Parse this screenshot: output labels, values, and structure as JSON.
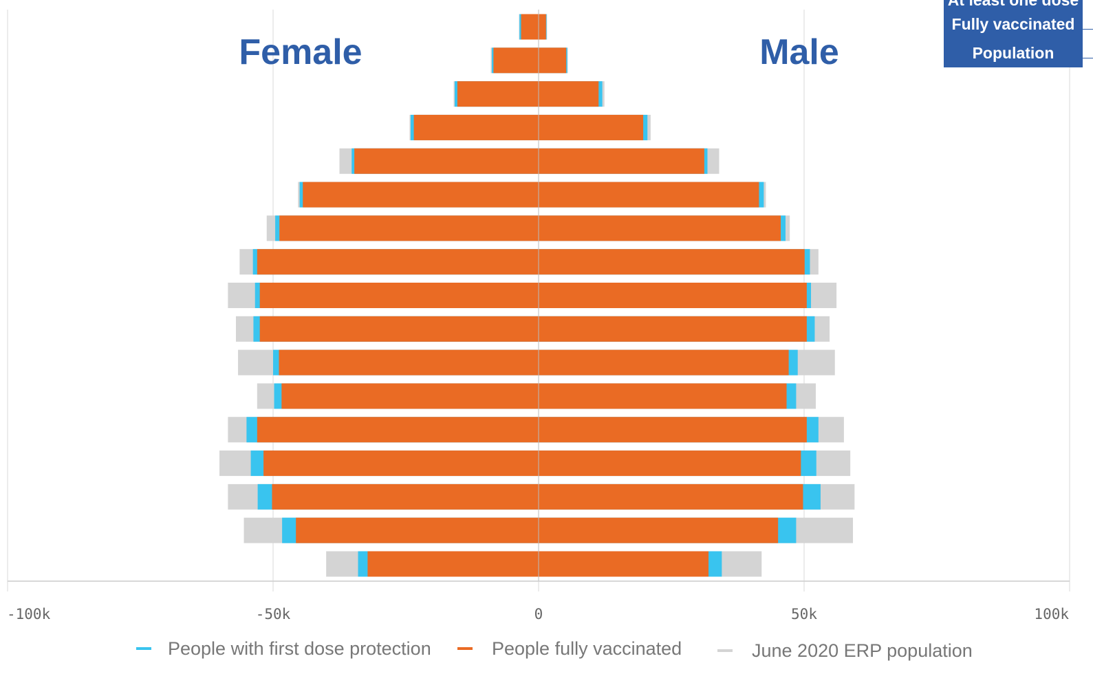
{
  "chart_data": {
    "type": "bar",
    "orientation": "horizontal",
    "layout": "population-pyramid",
    "xlim": [
      -100000,
      100000
    ],
    "x_ticks": [
      {
        "value": -100000,
        "label": "-100k"
      },
      {
        "value": -50000,
        "label": "-50k"
      },
      {
        "value": 0,
        "label": "0"
      },
      {
        "value": 50000,
        "label": "50k"
      },
      {
        "value": 100000,
        "label": "100k"
      }
    ],
    "side_labels": {
      "left": "Female",
      "right": "Male"
    },
    "legend": [
      {
        "key": "first_dose",
        "label": "People with first dose protection",
        "color": "#39c4ef"
      },
      {
        "key": "fully",
        "label": "People fully vaccinated",
        "color": "#ea6b24"
      },
      {
        "key": "population",
        "label": "June 2020 ERP population",
        "color": "#d4d4d4"
      }
    ],
    "overlay_legend": [
      "At least one dose",
      "Fully vaccinated",
      "Population"
    ],
    "rows": [
      {
        "female": {
          "population": 3700,
          "first_dose": 3600,
          "fully": 3300
        },
        "male": {
          "population": 1600,
          "first_dose": 1500,
          "fully": 1400
        }
      },
      {
        "female": {
          "population": 9000,
          "first_dose": 8800,
          "fully": 8500
        },
        "male": {
          "population": 5500,
          "first_dose": 5400,
          "fully": 5200
        }
      },
      {
        "female": {
          "population": 16000,
          "first_dose": 15800,
          "fully": 15300
        },
        "male": {
          "population": 12400,
          "first_dose": 12000,
          "fully": 11300
        }
      },
      {
        "female": {
          "population": 24300,
          "first_dose": 24100,
          "fully": 23500
        },
        "male": {
          "population": 21100,
          "first_dose": 20500,
          "fully": 19700
        }
      },
      {
        "female": {
          "population": 37500,
          "first_dose": 35200,
          "fully": 34700
        },
        "male": {
          "population": 34000,
          "first_dose": 31800,
          "fully": 31200
        }
      },
      {
        "female": {
          "population": 45300,
          "first_dose": 45000,
          "fully": 44400
        },
        "male": {
          "population": 42800,
          "first_dose": 42400,
          "fully": 41500
        }
      },
      {
        "female": {
          "population": 51200,
          "first_dose": 49600,
          "fully": 48800
        },
        "male": {
          "population": 47300,
          "first_dose": 46500,
          "fully": 45600
        }
      },
      {
        "female": {
          "population": 56300,
          "first_dose": 53800,
          "fully": 53000
        },
        "male": {
          "population": 52700,
          "first_dose": 51100,
          "fully": 50100
        }
      },
      {
        "female": {
          "population": 58500,
          "first_dose": 53400,
          "fully": 52500
        },
        "male": {
          "population": 56100,
          "first_dose": 51300,
          "fully": 50500
        }
      },
      {
        "female": {
          "population": 57000,
          "first_dose": 53700,
          "fully": 52500
        },
        "male": {
          "population": 54800,
          "first_dose": 52000,
          "fully": 50500
        }
      },
      {
        "female": {
          "population": 56600,
          "first_dose": 50000,
          "fully": 48900
        },
        "male": {
          "population": 55800,
          "first_dose": 48800,
          "fully": 47100
        }
      },
      {
        "female": {
          "population": 53000,
          "first_dose": 49800,
          "fully": 48400
        },
        "male": {
          "population": 52200,
          "first_dose": 48500,
          "fully": 46700
        }
      },
      {
        "female": {
          "population": 58500,
          "first_dose": 55000,
          "fully": 53000
        },
        "male": {
          "population": 57500,
          "first_dose": 52700,
          "fully": 50500
        }
      },
      {
        "female": {
          "population": 60100,
          "first_dose": 54200,
          "fully": 51800
        },
        "male": {
          "population": 58700,
          "first_dose": 52300,
          "fully": 49400
        }
      },
      {
        "female": {
          "population": 58500,
          "first_dose": 52900,
          "fully": 50200
        },
        "male": {
          "population": 59500,
          "first_dose": 53100,
          "fully": 49800
        }
      },
      {
        "female": {
          "population": 55500,
          "first_dose": 48300,
          "fully": 45700
        },
        "male": {
          "population": 59200,
          "first_dose": 48500,
          "fully": 45100
        }
      },
      {
        "female": {
          "population": 40000,
          "first_dose": 34000,
          "fully": 32200
        },
        "male": {
          "population": 42000,
          "first_dose": 34500,
          "fully": 32000
        }
      }
    ]
  }
}
